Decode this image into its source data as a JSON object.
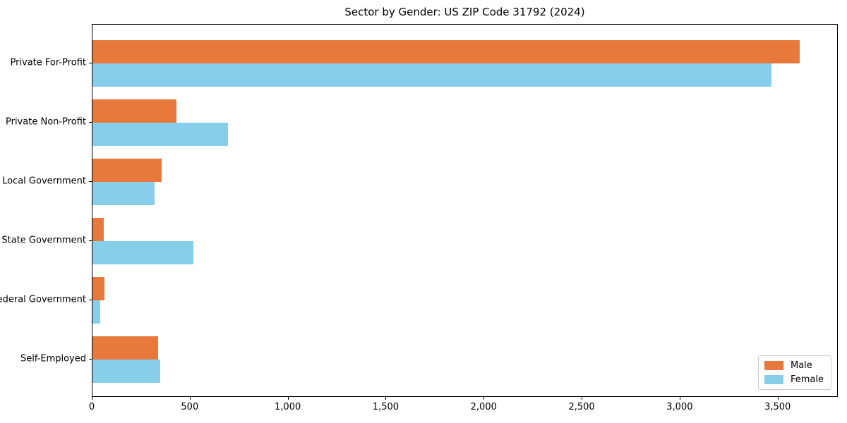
{
  "chart_data": {
    "type": "bar",
    "orientation": "horizontal",
    "title": "Sector by Gender: US ZIP Code 31792 (2024)",
    "xlabel": "",
    "ylabel": "",
    "categories": [
      "Private For-Profit",
      "Private Non-Profit",
      "Local Government",
      "State Government",
      "Federal Government",
      "Self-Employed"
    ],
    "series": [
      {
        "name": "Male",
        "color": "#E8793D",
        "values": [
          3610,
          428,
          352,
          57,
          61,
          334
        ]
      },
      {
        "name": "Female",
        "color": "#87CEEB",
        "values": [
          3465,
          693,
          316,
          514,
          39,
          345
        ]
      }
    ],
    "xlim": [
      0,
      3800
    ],
    "x_ticks": [
      0,
      500,
      1000,
      1500,
      2000,
      2500,
      3000,
      3500
    ],
    "x_tick_labels": [
      "0",
      "500",
      "1,000",
      "1,500",
      "2,000",
      "2,500",
      "3,000",
      "3,500"
    ],
    "legend_position": "lower right",
    "grid": false,
    "bar_color_male": "#E8793D",
    "bar_color_female": "#87CEEB"
  }
}
